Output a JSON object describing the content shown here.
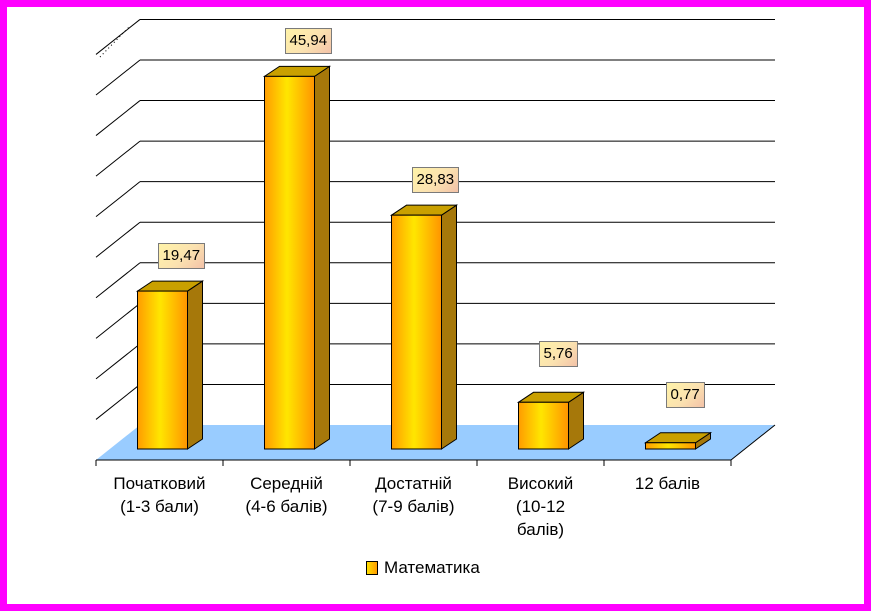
{
  "chart_data": {
    "type": "bar",
    "categories": [
      "Початковий\n(1-3 бали)",
      "Середній\n(4-6 балів)",
      "Достатній\n(7-9 балів)",
      "Високий\n(10-12\nбалів)",
      "12 балів"
    ],
    "series": [
      {
        "name": "Математика",
        "values": [
          19.47,
          45.94,
          28.83,
          5.76,
          0.77
        ]
      }
    ],
    "data_labels": [
      "19,47",
      "45,94",
      "28,83",
      "5,76",
      "0,77"
    ],
    "ylim": [
      0,
      50
    ],
    "grid": true,
    "three_d": true,
    "legend_position": "bottom",
    "colors": {
      "bar_light": "#ffe000",
      "bar_dark": "#ff9400",
      "bar_side": "#b8860b",
      "floor": "#99ccff",
      "frame": "#ff00ff"
    }
  }
}
